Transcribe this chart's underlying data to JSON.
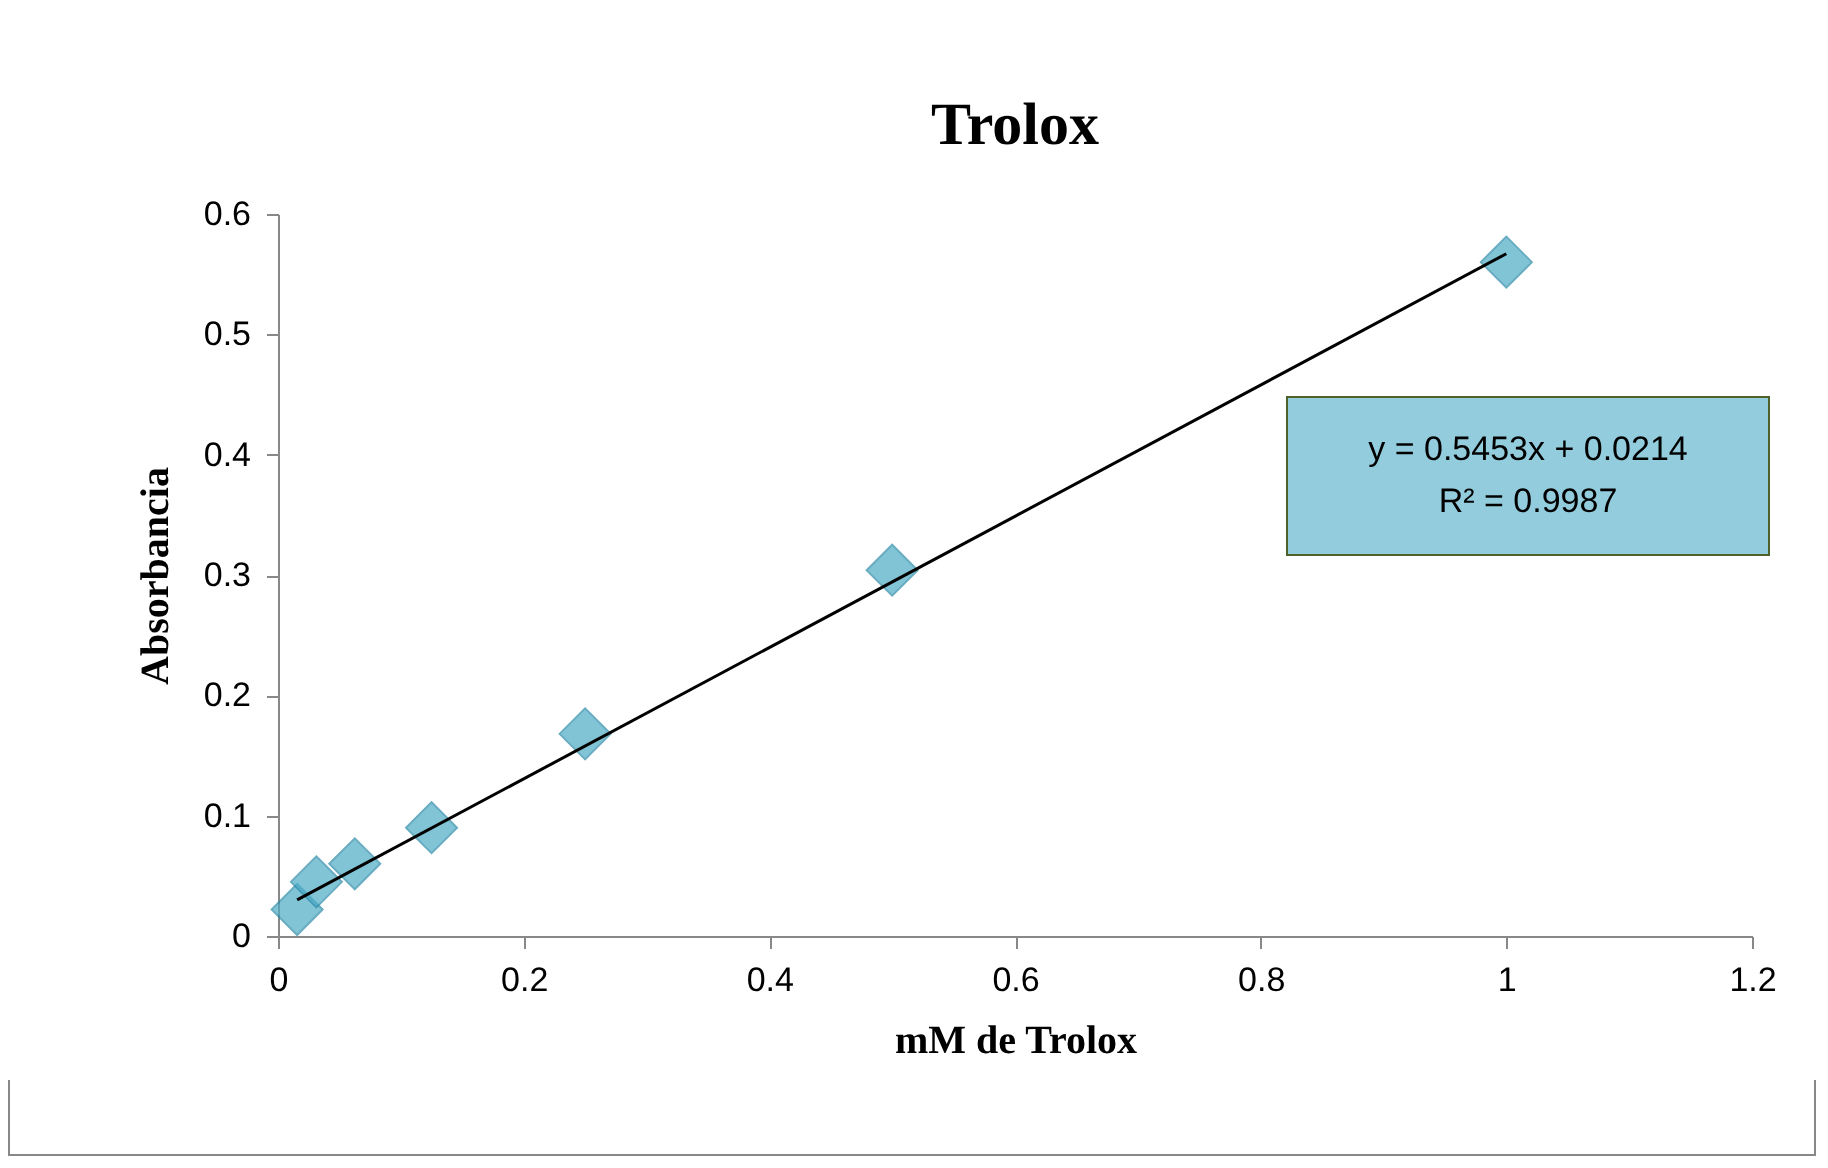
{
  "chart_data": {
    "type": "scatter",
    "title": "Trolox",
    "xlabel": "mM de Trolox",
    "ylabel": "Absorbancia",
    "xlim": [
      0,
      1.2
    ],
    "xticks": [
      0,
      0.2,
      0.4,
      0.6,
      0.8,
      1,
      1.2
    ],
    "ylim": [
      0,
      0.6
    ],
    "yticks": [
      0,
      0.1,
      0.2,
      0.3,
      0.4,
      0.5,
      0.6
    ],
    "grid": false,
    "marker": "diamond",
    "series": [
      {
        "color": "#4bacc6",
        "x": [
          0.0156,
          0.03125,
          0.0625,
          0.125,
          0.25,
          0.5,
          1
        ],
        "values": [
          0.022,
          0.045,
          0.06,
          0.09,
          0.168,
          0.304,
          0.56
        ]
      },
      {
        "type": "line",
        "color": "#000000",
        "marker": "none",
        "x": [
          0.0156,
          1
        ],
        "values": [
          0.03,
          0.567
        ]
      }
    ],
    "annotations": [
      "y = 0.5453x + 0.0214",
      "R² = 0.9987"
    ]
  }
}
